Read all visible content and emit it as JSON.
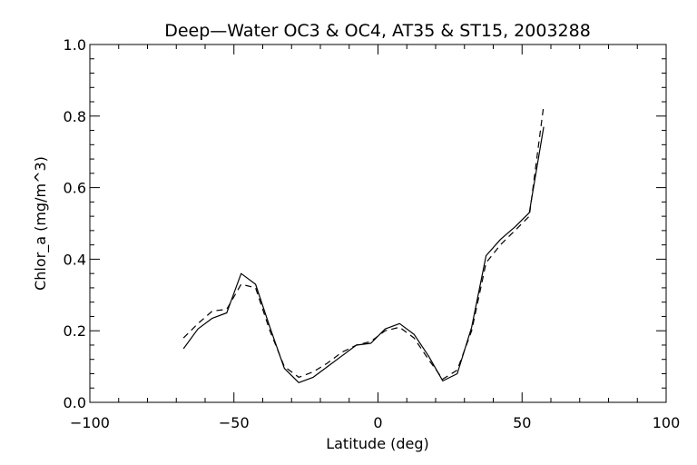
{
  "chart_data": {
    "type": "line",
    "title": "Deep—Water OC3 & OC4, AT35 & ST15, 2003288",
    "xlabel": "Latitude (deg)",
    "ylabel": "Chlor_a (mg/m^3)",
    "xlim": [
      -100,
      100
    ],
    "ylim": [
      0.0,
      1.0
    ],
    "xticks": [
      -100,
      -50,
      0,
      50,
      100
    ],
    "xtick_labels": [
      "−100",
      "−50",
      "0",
      "50",
      "100"
    ],
    "yticks": [
      0.0,
      0.2,
      0.4,
      0.6,
      0.8,
      1.0
    ],
    "ytick_labels": [
      "0.0",
      "0.2",
      "0.4",
      "0.6",
      "0.8",
      "1.0"
    ],
    "grid": false,
    "series": [
      {
        "style": "solid",
        "color": "#000000",
        "x": [
          -67.5,
          -62.5,
          -57.5,
          -52.5,
          -47.5,
          -42.5,
          -37.5,
          -32.5,
          -27.5,
          -22.5,
          -17.5,
          -12.5,
          -7.5,
          -2.5,
          2.5,
          7.5,
          12.5,
          17.5,
          22.5,
          27.5,
          32.5,
          37.5,
          42.5,
          47.5,
          52.5,
          57.5
        ],
        "y": [
          0.15,
          0.205,
          0.235,
          0.25,
          0.36,
          0.33,
          0.21,
          0.095,
          0.055,
          0.07,
          0.1,
          0.13,
          0.16,
          0.165,
          0.205,
          0.22,
          0.19,
          0.13,
          0.06,
          0.08,
          0.21,
          0.41,
          0.455,
          0.49,
          0.53,
          0.77
        ]
      },
      {
        "style": "dashed",
        "color": "#000000",
        "x": [
          -67.5,
          -62.5,
          -57.5,
          -52.5,
          -47.5,
          -42.5,
          -37.5,
          -32.5,
          -27.5,
          -22.5,
          -17.5,
          -12.5,
          -7.5,
          -2.5,
          2.5,
          7.5,
          12.5,
          17.5,
          22.5,
          27.5,
          32.5,
          37.5,
          42.5,
          47.5,
          52.5,
          57.5
        ],
        "y": [
          0.18,
          0.22,
          0.255,
          0.26,
          0.33,
          0.32,
          0.2,
          0.1,
          0.07,
          0.085,
          0.11,
          0.14,
          0.16,
          0.17,
          0.2,
          0.21,
          0.18,
          0.12,
          0.065,
          0.09,
          0.2,
          0.39,
          0.44,
          0.48,
          0.52,
          0.83
        ]
      }
    ]
  }
}
